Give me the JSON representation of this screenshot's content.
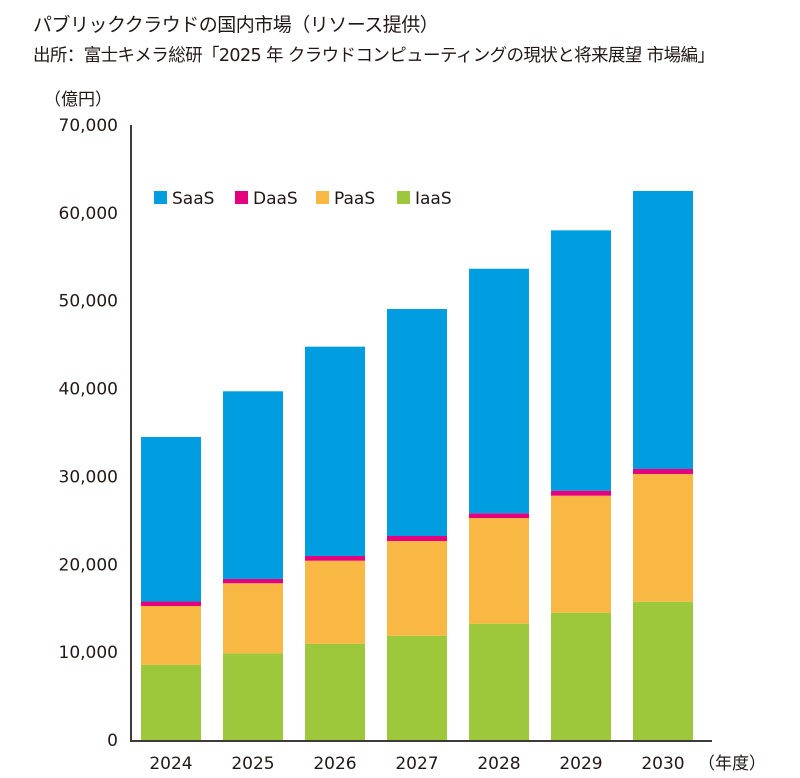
{
  "title": "パブリッククラウドの国内市場（リソース提供）",
  "source": "出所：富士キメラ総研「2025 年 クラウドコンピューティングの現状と将来展望 市場編」",
  "chart_data": {
    "type": "bar",
    "stacked": true,
    "title": "パブリッククラウドの国内市場（リソース提供）",
    "xlabel": "（年度）",
    "ylabel": "（億円）",
    "ylim": [
      0,
      70000
    ],
    "yticks": [
      0,
      10000,
      20000,
      30000,
      40000,
      50000,
      60000,
      70000
    ],
    "ytick_labels": [
      "0",
      "10,000",
      "20,000",
      "30,000",
      "40,000",
      "50,000",
      "60,000",
      "70,000"
    ],
    "grid": false,
    "legend_position": "top-left",
    "categories": [
      "2024",
      "2025",
      "2026",
      "2027",
      "2028",
      "2029",
      "2030"
    ],
    "series": [
      {
        "name": "IaaS",
        "color": "#9dc83b",
        "values": [
          8570,
          9870,
          10960,
          11870,
          13240,
          14490,
          15740
        ]
      },
      {
        "name": "PaaS",
        "color": "#f8b843",
        "values": [
          6680,
          7970,
          9450,
          10780,
          12030,
          13320,
          14540
        ]
      },
      {
        "name": "DaaS",
        "color": "#e4007f",
        "values": [
          510,
          490,
          530,
          570,
          530,
          570,
          570
        ]
      },
      {
        "name": "SaaS",
        "color": "#009ee0",
        "values": [
          18730,
          21360,
          23830,
          25840,
          27840,
          29630,
          31640
        ]
      }
    ],
    "legend_order": [
      "SaaS",
      "DaaS",
      "PaaS",
      "IaaS"
    ]
  }
}
